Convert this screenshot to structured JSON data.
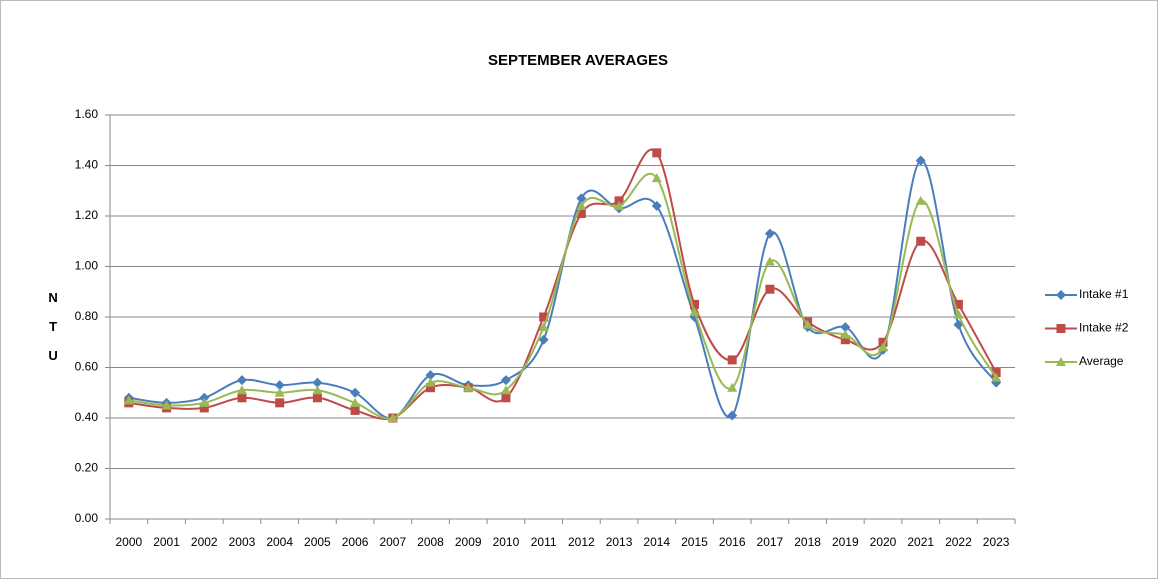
{
  "chart_data": {
    "type": "line",
    "title": "SEPTEMBER AVERAGES",
    "y_label": "NTU",
    "categories": [
      "2000",
      "2001",
      "2002",
      "2003",
      "2004",
      "2005",
      "2006",
      "2007",
      "2008",
      "2009",
      "2010",
      "2011",
      "2012",
      "2013",
      "2014",
      "2015",
      "2016",
      "2017",
      "2018",
      "2019",
      "2020",
      "2021",
      "2022",
      "2023"
    ],
    "series": [
      {
        "name": "Intake #1",
        "color": "#4a7ebb",
        "marker": "diamond",
        "values": [
          0.48,
          0.46,
          0.48,
          0.55,
          0.53,
          0.54,
          0.5,
          0.4,
          0.57,
          0.53,
          0.55,
          0.71,
          1.27,
          1.23,
          1.24,
          0.8,
          0.41,
          1.13,
          0.76,
          0.76,
          0.67,
          1.42,
          0.77,
          0.54
        ]
      },
      {
        "name": "Intake #2",
        "color": "#be4b48",
        "marker": "square",
        "values": [
          0.46,
          0.44,
          0.44,
          0.48,
          0.46,
          0.48,
          0.43,
          0.4,
          0.52,
          0.52,
          0.48,
          0.8,
          1.21,
          1.26,
          1.45,
          0.85,
          0.63,
          0.91,
          0.78,
          0.71,
          0.7,
          1.1,
          0.85,
          0.58
        ]
      },
      {
        "name": "Average",
        "color": "#98b954",
        "marker": "triangle",
        "values": [
          0.47,
          0.45,
          0.46,
          0.51,
          0.5,
          0.51,
          0.46,
          0.4,
          0.54,
          0.52,
          0.51,
          0.76,
          1.24,
          1.24,
          1.35,
          0.82,
          0.52,
          1.02,
          0.77,
          0.73,
          0.68,
          1.26,
          0.81,
          0.56
        ]
      }
    ],
    "ylim": [
      0,
      1.6
    ],
    "yticks": [
      {
        "value": 0,
        "label": "0.00"
      },
      {
        "value": 0.2,
        "label": "0.20"
      },
      {
        "value": 0.4,
        "label": "0.40"
      },
      {
        "value": 0.6,
        "label": "0.60"
      },
      {
        "value": 0.8,
        "label": "0.80"
      },
      {
        "value": 1.0,
        "label": "1.00"
      },
      {
        "value": 1.2,
        "label": "1.20"
      },
      {
        "value": 1.4,
        "label": "1.40"
      },
      {
        "value": 1.6,
        "label": "1.60"
      }
    ],
    "grid": true,
    "smooth": true,
    "legend": "right"
  }
}
